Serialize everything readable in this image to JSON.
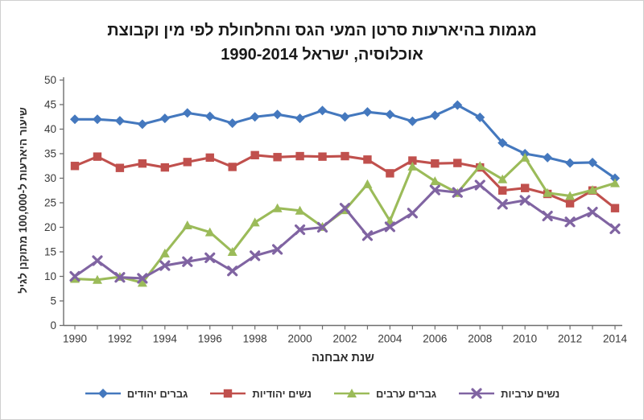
{
  "title": {
    "line1": "מגמות בהיארעות סרטן המעי הגס והחלחולת לפי מין וקבוצת",
    "line2": "אוכלוסיה, ישראל 1990-2014"
  },
  "chart_data": {
    "type": "line",
    "title": "מגמות בהיארעות סרטן המעי הגס והחלחולת לפי מין וקבוצת אוכלוסיה, ישראל 1990-2014",
    "xlabel": "שנת אבחנה",
    "ylabel": "שיעור היארעות ל-100,000 מתוקנן לגיל",
    "x": [
      1990,
      1991,
      1992,
      1993,
      1994,
      1995,
      1996,
      1997,
      1998,
      1999,
      2000,
      2001,
      2002,
      2003,
      2004,
      2005,
      2006,
      2007,
      2008,
      2009,
      2010,
      2011,
      2012,
      2013,
      2014
    ],
    "xticks": [
      1990,
      1992,
      1994,
      1996,
      1998,
      2000,
      2002,
      2004,
      2006,
      2008,
      2010,
      2012,
      2014
    ],
    "yticks": [
      0,
      5,
      10,
      15,
      20,
      25,
      30,
      35,
      40,
      45,
      50
    ],
    "ylim": [
      0,
      50
    ],
    "grid": false,
    "legend_position": "bottom",
    "axis_color": "#6e6e6e",
    "series": [
      {
        "id": "jewish-men",
        "name": "גברים יהודים",
        "color": "#4478BE",
        "marker": "diamond",
        "values": [
          42.0,
          42.0,
          41.7,
          41.0,
          42.2,
          43.3,
          42.6,
          41.2,
          42.5,
          43.0,
          42.2,
          43.8,
          42.5,
          43.5,
          43.0,
          41.6,
          42.8,
          44.9,
          42.4,
          37.2,
          35.0,
          34.2,
          33.1,
          33.2,
          30.0
        ]
      },
      {
        "id": "jewish-women",
        "name": "נשים יהודיות",
        "color": "#C0504D",
        "marker": "square",
        "values": [
          32.5,
          34.4,
          32.1,
          33.0,
          32.2,
          33.3,
          34.2,
          32.3,
          34.7,
          34.3,
          34.5,
          34.4,
          34.5,
          33.8,
          31.0,
          33.6,
          33.0,
          33.1,
          32.2,
          27.5,
          28.0,
          26.8,
          24.9,
          27.5,
          23.9
        ]
      },
      {
        "id": "arab-men",
        "name": "גברים ערבים",
        "color": "#9BBB59",
        "marker": "triangle",
        "values": [
          9.5,
          9.3,
          9.9,
          8.7,
          14.7,
          20.4,
          19.0,
          15.0,
          21.0,
          23.9,
          23.4,
          20.1,
          23.5,
          28.8,
          21.3,
          32.4,
          29.4,
          27.0,
          32.5,
          29.8,
          34.2,
          27.0,
          26.4,
          27.6,
          29.0
        ]
      },
      {
        "id": "arab-women",
        "name": "נשים ערביות",
        "color": "#8064A2",
        "marker": "x",
        "values": [
          10.0,
          13.2,
          9.8,
          9.6,
          12.2,
          13.0,
          13.8,
          11.1,
          14.2,
          15.5,
          19.5,
          20.0,
          23.9,
          18.3,
          20.1,
          22.9,
          27.6,
          27.1,
          28.6,
          24.7,
          25.5,
          22.3,
          21.1,
          23.1,
          19.7
        ]
      }
    ]
  }
}
